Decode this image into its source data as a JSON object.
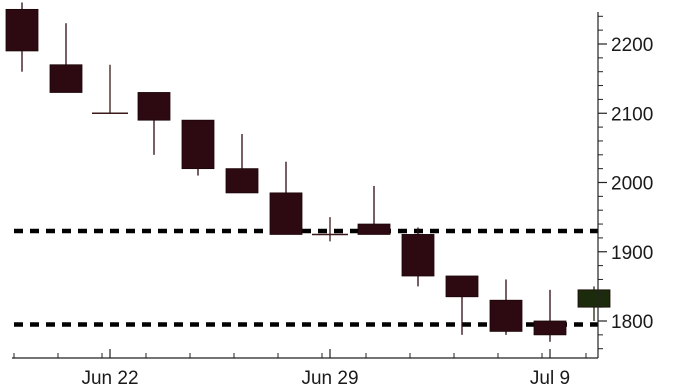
{
  "chart_data": {
    "type": "candlestick",
    "title": "",
    "xlabel": "",
    "ylabel": "",
    "ylim": [
      1755,
      2260
    ],
    "y_ticks": [
      1800,
      1900,
      2000,
      2100,
      2200
    ],
    "y_axis_side": "right",
    "x_ticks": [
      {
        "label": "Jun 22",
        "index": 2
      },
      {
        "label": "Jun 29",
        "index": 7
      },
      {
        "label": "Jul 9",
        "index": 12
      }
    ],
    "candles": [
      {
        "open": 2250,
        "high": 2260,
        "low": 2160,
        "close": 2190
      },
      {
        "open": 2170,
        "high": 2230,
        "low": 2130,
        "close": 2130
      },
      {
        "open": 2100,
        "high": 2170,
        "low": 2100,
        "close": 2100
      },
      {
        "open": 2130,
        "high": 2130,
        "low": 2040,
        "close": 2090
      },
      {
        "open": 2090,
        "high": 2090,
        "low": 2010,
        "close": 2020
      },
      {
        "open": 2020,
        "high": 2070,
        "low": 1985,
        "close": 1985
      },
      {
        "open": 1985,
        "high": 2030,
        "low": 1925,
        "close": 1925
      },
      {
        "open": 1925,
        "high": 1950,
        "low": 1915,
        "close": 1925
      },
      {
        "open": 1940,
        "high": 1995,
        "low": 1925,
        "close": 1925
      },
      {
        "open": 1925,
        "high": 1935,
        "low": 1850,
        "close": 1865
      },
      {
        "open": 1865,
        "high": 1865,
        "low": 1780,
        "close": 1835
      },
      {
        "open": 1830,
        "high": 1860,
        "low": 1780,
        "close": 1785
      },
      {
        "open": 1800,
        "high": 1845,
        "low": 1770,
        "close": 1780
      },
      {
        "open": 1820,
        "high": 1850,
        "low": 1800,
        "close": 1845
      }
    ],
    "reference_lines": [
      {
        "value": 1930,
        "style": "dotted"
      },
      {
        "value": 1795,
        "style": "dotted"
      }
    ],
    "colors": {
      "down": "#2d0a12",
      "up": "#1c2b0b",
      "doji": "#3a1a1a",
      "axis": "#222222",
      "reference": "#000000"
    },
    "grid": false,
    "legend": "none"
  }
}
